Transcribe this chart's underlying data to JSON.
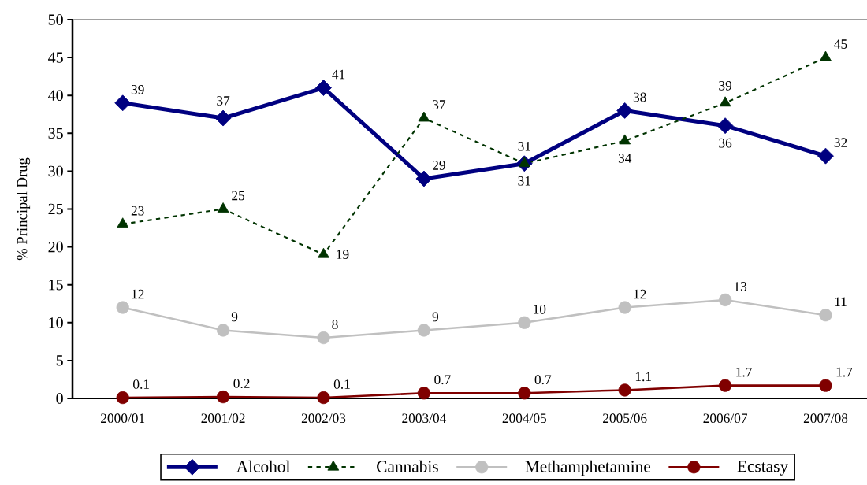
{
  "chart_data": {
    "type": "line",
    "ylabel": "% Principal Drug",
    "categories": [
      "2000/01",
      "2001/02",
      "2002/03",
      "2003/04",
      "2004/05",
      "2005/06",
      "2006/07",
      "2007/08"
    ],
    "ylim": [
      0,
      50
    ],
    "yticks": [
      0,
      5,
      10,
      15,
      20,
      25,
      30,
      35,
      40,
      45,
      50
    ],
    "grid": false,
    "legend": "bottom",
    "data_labels": true,
    "series": [
      {
        "name": "Alcohol",
        "color": "#000080",
        "marker": "diamond",
        "line_style": "solid",
        "values": [
          39,
          37,
          41,
          29,
          31,
          38,
          36,
          32
        ]
      },
      {
        "name": "Cannabis",
        "color": "#003300",
        "marker": "triangle",
        "line_style": "dashed",
        "values": [
          23,
          25,
          19,
          37,
          31,
          34,
          39,
          45
        ]
      },
      {
        "name": "Methamphetamine",
        "color": "#c0c0c0",
        "marker": "circle",
        "line_style": "solid",
        "values": [
          12,
          9,
          8,
          9,
          10,
          12,
          13,
          11
        ]
      },
      {
        "name": "Ecstasy",
        "color": "#800000",
        "marker": "circle",
        "line_style": "solid",
        "values": [
          0.1,
          0.2,
          0.1,
          0.7,
          0.7,
          1.1,
          1.7,
          1.7
        ]
      }
    ]
  }
}
